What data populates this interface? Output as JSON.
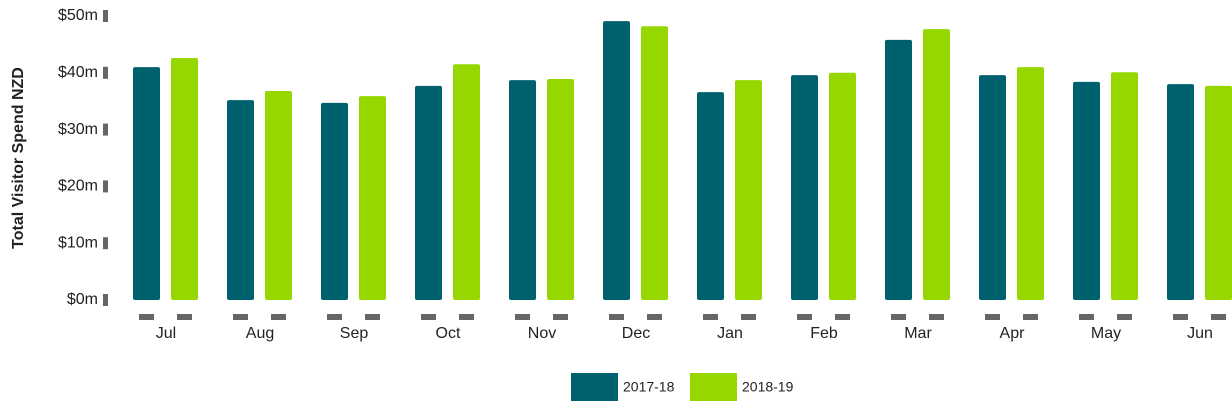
{
  "chart_data": {
    "type": "bar",
    "y_label": "Total Visitor Spend NZD",
    "categories": [
      "Jul",
      "Aug",
      "Sep",
      "Oct",
      "Nov",
      "Dec",
      "Jan",
      "Feb",
      "Mar",
      "Apr",
      "May",
      "Jun"
    ],
    "series": [
      {
        "name": "2017-18",
        "color": "#00616e",
        "values": [
          41.0,
          35.2,
          34.7,
          37.7,
          38.7,
          49.1,
          36.6,
          39.6,
          45.8,
          39.6,
          38.4,
          38.0
        ]
      },
      {
        "name": "2018-19",
        "color": "#97d700",
        "values": [
          42.6,
          36.8,
          35.9,
          41.5,
          38.9,
          48.2,
          38.7,
          40.0,
          47.7,
          41.0,
          40.1,
          37.7
        ]
      }
    ],
    "ylim": [
      0,
      50
    ],
    "yticks": [
      {
        "value": 0,
        "label": "$0m"
      },
      {
        "value": 10,
        "label": "$10m"
      },
      {
        "value": 20,
        "label": "$20m"
      },
      {
        "value": 30,
        "label": "$30m"
      },
      {
        "value": 40,
        "label": "$40m"
      },
      {
        "value": 50,
        "label": "$50m"
      }
    ],
    "grid": false,
    "legend": "bottom"
  }
}
